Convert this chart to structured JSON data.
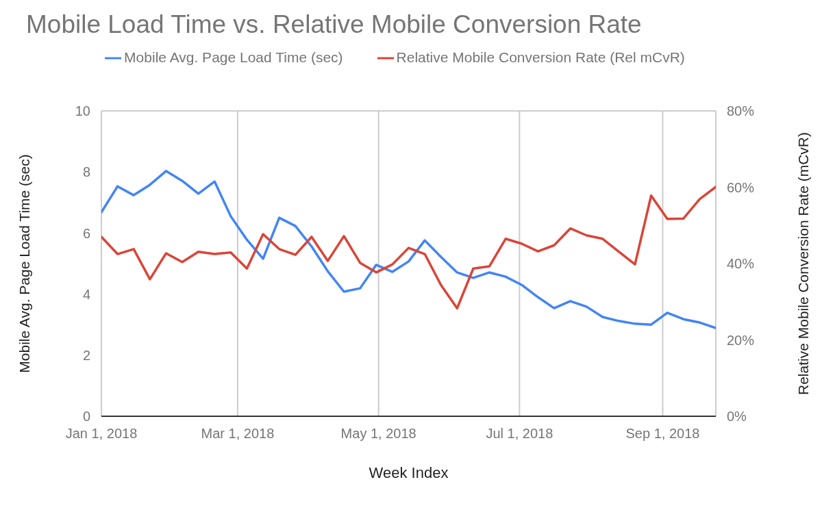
{
  "chart_data": {
    "type": "line",
    "title": "Mobile Load Time vs. Relative Mobile Conversion Rate",
    "xlabel": "Week Index",
    "ylabel": "Mobile Avg. Page Load Time (sec)",
    "y2label": "Relative Mobile Conversion Rate (mCvR)",
    "x": [
      "2018-01-01",
      "2018-01-08",
      "2018-01-15",
      "2018-01-22",
      "2018-01-29",
      "2018-02-05",
      "2018-02-12",
      "2018-02-19",
      "2018-02-26",
      "2018-03-05",
      "2018-03-12",
      "2018-03-19",
      "2018-03-26",
      "2018-04-02",
      "2018-04-09",
      "2018-04-16",
      "2018-04-23",
      "2018-04-30",
      "2018-05-07",
      "2018-05-14",
      "2018-05-21",
      "2018-05-28",
      "2018-06-04",
      "2018-06-11",
      "2018-06-18",
      "2018-06-25",
      "2018-07-02",
      "2018-07-09",
      "2018-07-16",
      "2018-07-23",
      "2018-07-30",
      "2018-08-06",
      "2018-08-13",
      "2018-08-20",
      "2018-08-27",
      "2018-09-03",
      "2018-09-10",
      "2018-09-17",
      "2018-09-24"
    ],
    "series": [
      {
        "name": "Mobile Avg. Page Load Time (sec)",
        "color": "#4285f4",
        "values": [
          6.68,
          7.53,
          7.24,
          7.58,
          8.03,
          7.71,
          7.29,
          7.69,
          6.55,
          5.78,
          5.16,
          6.5,
          6.23,
          5.56,
          4.75,
          4.08,
          4.19,
          4.96,
          4.73,
          5.07,
          5.76,
          5.22,
          4.71,
          4.53,
          4.71,
          4.57,
          4.3,
          3.9,
          3.54,
          3.77,
          3.59,
          3.25,
          3.12,
          3.03,
          3.0,
          3.39,
          3.18,
          3.07,
          2.89
        ]
      },
      {
        "name": "Relative Mobile Conversion Rate (Rel mCvR)",
        "color": "#db4437",
        "axis": "y2",
        "values": [
          47.0,
          42.5,
          43.8,
          35.9,
          42.7,
          40.4,
          43.1,
          42.5,
          42.9,
          38.7,
          47.7,
          43.8,
          42.3,
          47.0,
          40.7,
          47.2,
          40.2,
          37.7,
          39.8,
          44.1,
          42.5,
          34.4,
          28.3,
          38.7,
          39.3,
          46.5,
          45.2,
          43.2,
          44.8,
          49.2,
          47.4,
          46.5,
          43.1,
          39.8,
          57.8,
          51.7,
          51.8,
          56.9,
          60.1
        ]
      }
    ],
    "xlim": [
      "2018-01-01",
      "2018-09-24"
    ],
    "xticks": [
      {
        "value": "2018-01-01",
        "label": "Jan 1, 2018"
      },
      {
        "value": "2018-03-01",
        "label": "Mar 1, 2018"
      },
      {
        "value": "2018-05-01",
        "label": "May 1, 2018"
      },
      {
        "value": "2018-07-01",
        "label": "Jul 1, 2018"
      },
      {
        "value": "2018-09-01",
        "label": "Sep 1, 2018"
      }
    ],
    "ylim": [
      0,
      10
    ],
    "yticks": [
      0,
      2,
      4,
      6,
      8,
      10
    ],
    "y2lim": [
      0,
      80
    ],
    "y2ticks": [
      {
        "value": 0,
        "label": "0%"
      },
      {
        "value": 20,
        "label": "20%"
      },
      {
        "value": 40,
        "label": "40%"
      },
      {
        "value": 60,
        "label": "60%"
      },
      {
        "value": 80,
        "label": "80%"
      }
    ],
    "grid": true,
    "legend": "top"
  }
}
